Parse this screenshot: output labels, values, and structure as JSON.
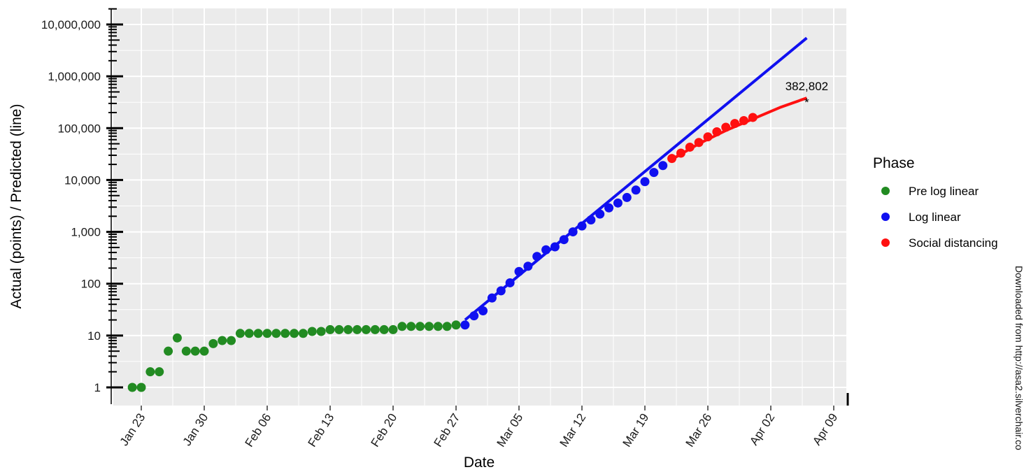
{
  "chart_data": {
    "type": "scatter",
    "xlabel": "Date",
    "ylabel": "Actual (points) / Predicted (line)",
    "y_scale": "log10",
    "ylim": [
      1,
      10000000
    ],
    "xlim": [
      "2020-01-18",
      "2020-04-09"
    ],
    "grid": true,
    "legend_position": "right",
    "legend_title": "Phase",
    "x_ticks": [
      {
        "date": "2020-01-23",
        "label": "Jan 23"
      },
      {
        "date": "2020-01-30",
        "label": "Jan 30"
      },
      {
        "date": "2020-02-06",
        "label": "Feb 06"
      },
      {
        "date": "2020-02-13",
        "label": "Feb 13"
      },
      {
        "date": "2020-02-20",
        "label": "Feb 20"
      },
      {
        "date": "2020-02-27",
        "label": "Feb 27"
      },
      {
        "date": "2020-03-05",
        "label": "Mar 05"
      },
      {
        "date": "2020-03-12",
        "label": "Mar 12"
      },
      {
        "date": "2020-03-19",
        "label": "Mar 19"
      },
      {
        "date": "2020-03-26",
        "label": "Mar 26"
      },
      {
        "date": "2020-04-02",
        "label": "Apr 02"
      },
      {
        "date": "2020-04-09",
        "label": "Apr 09"
      }
    ],
    "y_ticks": [
      {
        "value": 1,
        "label": "1"
      },
      {
        "value": 10,
        "label": "10"
      },
      {
        "value": 100,
        "label": "100"
      },
      {
        "value": 1000,
        "label": "1,000"
      },
      {
        "value": 10000,
        "label": "10,000"
      },
      {
        "value": 100000,
        "label": "100,000"
      },
      {
        "value": 1000000,
        "label": "1,000,000"
      },
      {
        "value": 10000000,
        "label": "10,000,000"
      }
    ],
    "series": [
      {
        "name": "Pre log linear",
        "color": "#228b22",
        "points": [
          [
            "2020-01-22",
            1
          ],
          [
            "2020-01-23",
            1
          ],
          [
            "2020-01-24",
            2
          ],
          [
            "2020-01-25",
            2
          ],
          [
            "2020-01-26",
            5
          ],
          [
            "2020-01-27",
            9
          ],
          [
            "2020-01-28",
            5
          ],
          [
            "2020-01-29",
            5
          ],
          [
            "2020-01-30",
            5
          ],
          [
            "2020-01-31",
            7
          ],
          [
            "2020-02-01",
            8
          ],
          [
            "2020-02-02",
            8
          ],
          [
            "2020-02-03",
            11
          ],
          [
            "2020-02-04",
            11
          ],
          [
            "2020-02-05",
            11
          ],
          [
            "2020-02-06",
            11
          ],
          [
            "2020-02-07",
            11
          ],
          [
            "2020-02-08",
            11
          ],
          [
            "2020-02-09",
            11
          ],
          [
            "2020-02-10",
            11
          ],
          [
            "2020-02-11",
            12
          ],
          [
            "2020-02-12",
            12
          ],
          [
            "2020-02-13",
            13
          ],
          [
            "2020-02-14",
            13
          ],
          [
            "2020-02-15",
            13
          ],
          [
            "2020-02-16",
            13
          ],
          [
            "2020-02-17",
            13
          ],
          [
            "2020-02-18",
            13
          ],
          [
            "2020-02-19",
            13
          ],
          [
            "2020-02-20",
            13
          ],
          [
            "2020-02-21",
            15
          ],
          [
            "2020-02-22",
            15
          ],
          [
            "2020-02-23",
            15
          ],
          [
            "2020-02-24",
            15
          ],
          [
            "2020-02-25",
            15
          ],
          [
            "2020-02-26",
            15
          ],
          [
            "2020-02-27",
            16
          ]
        ]
      },
      {
        "name": "Log linear",
        "color": "#1010f0",
        "points": [
          [
            "2020-02-28",
            16
          ],
          [
            "2020-02-29",
            24
          ],
          [
            "2020-03-01",
            30
          ],
          [
            "2020-03-02",
            53
          ],
          [
            "2020-03-03",
            73
          ],
          [
            "2020-03-04",
            104
          ],
          [
            "2020-03-05",
            172
          ],
          [
            "2020-03-06",
            217
          ],
          [
            "2020-03-07",
            336
          ],
          [
            "2020-03-08",
            450
          ],
          [
            "2020-03-09",
            514
          ],
          [
            "2020-03-10",
            708
          ],
          [
            "2020-03-11",
            1000
          ],
          [
            "2020-03-12",
            1300
          ],
          [
            "2020-03-13",
            1700
          ],
          [
            "2020-03-14",
            2200
          ],
          [
            "2020-03-15",
            2900
          ],
          [
            "2020-03-16",
            3600
          ],
          [
            "2020-03-17",
            4600
          ],
          [
            "2020-03-18",
            6400
          ],
          [
            "2020-03-19",
            9300
          ],
          [
            "2020-03-20",
            14000
          ],
          [
            "2020-03-21",
            19000
          ]
        ]
      },
      {
        "name": "Social distancing",
        "color": "#ff1010",
        "points": [
          [
            "2020-03-22",
            26000
          ],
          [
            "2020-03-23",
            33000
          ],
          [
            "2020-03-24",
            43000
          ],
          [
            "2020-03-25",
            53000
          ],
          [
            "2020-03-26",
            68000
          ],
          [
            "2020-03-27",
            85000
          ],
          [
            "2020-03-28",
            104000
          ],
          [
            "2020-03-29",
            123000
          ],
          [
            "2020-03-30",
            140000
          ],
          [
            "2020-03-31",
            161000
          ]
        ]
      }
    ],
    "prediction_lines": [
      {
        "name": "Log linear fit",
        "color": "#1010f0",
        "points": [
          [
            "2020-02-28",
            20
          ],
          [
            "2020-04-06",
            5500000
          ]
        ]
      },
      {
        "name": "Social distancing fit",
        "color": "#ff1010",
        "points": [
          [
            "2020-03-22",
            25000
          ],
          [
            "2020-03-25",
            50000
          ],
          [
            "2020-03-28",
            90000
          ],
          [
            "2020-03-31",
            150000
          ],
          [
            "2020-04-03",
            250000
          ],
          [
            "2020-04-06",
            382802
          ]
        ]
      }
    ],
    "annotation": {
      "date": "2020-04-06",
      "value": 382802,
      "marker": "*",
      "label": "382,802"
    }
  },
  "side_text": "Downloaded from http://asa2.silverchair.co"
}
